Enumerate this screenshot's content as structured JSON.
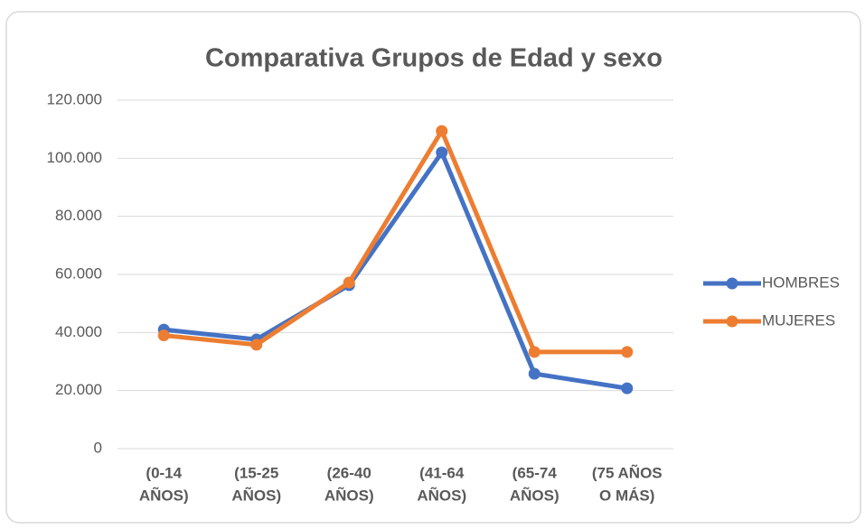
{
  "chart_data": {
    "type": "line",
    "title": "Comparativa Grupos de Edad y sexo",
    "categories": [
      [
        "(0-14",
        "AÑOS)"
      ],
      [
        "(15-25",
        "AÑOS)"
      ],
      [
        "(26-40",
        "AÑOS)"
      ],
      [
        "(41-64",
        "AÑOS)"
      ],
      [
        "(65-74",
        "AÑOS)"
      ],
      [
        "(75 AÑOS",
        "O MÁS)"
      ]
    ],
    "series": [
      {
        "name": "HOMBRES",
        "color": "#4472c4",
        "values": [
          41000,
          37600,
          56300,
          102000,
          25800,
          20800
        ]
      },
      {
        "name": "MUJERES",
        "color": "#ed7d31",
        "values": [
          39000,
          35800,
          57200,
          109400,
          33300,
          33300
        ]
      }
    ],
    "ylim": [
      0,
      120000
    ],
    "yticks": [
      0,
      {
        "value": 20000,
        "label": "20.000"
      },
      {
        "value": 40000,
        "label": "40.000"
      },
      {
        "value": 60000,
        "label": "60.000"
      },
      {
        "value": 80000,
        "label": "80.000"
      },
      {
        "value": 100000,
        "label": "100.000"
      },
      {
        "value": 120000,
        "label": "120.000"
      }
    ],
    "grid": true,
    "legend": "right"
  }
}
